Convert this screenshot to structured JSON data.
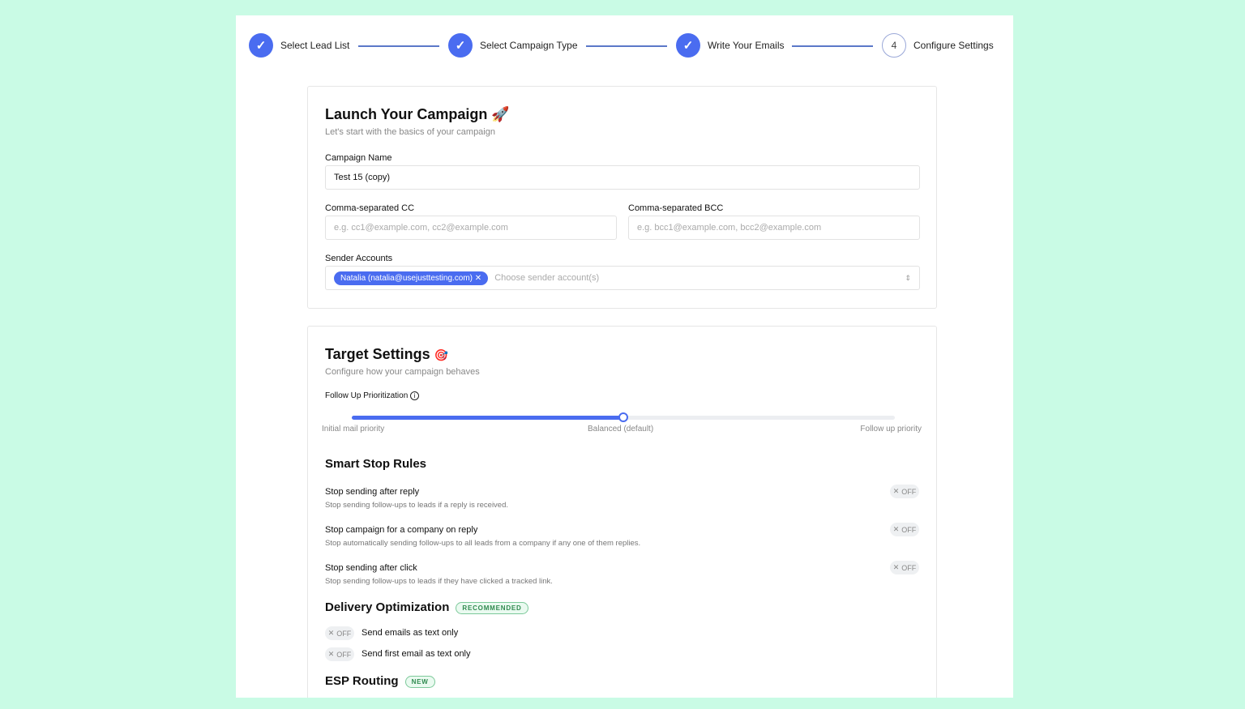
{
  "steps": [
    {
      "label": "Select Lead List",
      "status": "done"
    },
    {
      "label": "Select Campaign Type",
      "status": "done"
    },
    {
      "label": "Write Your Emails",
      "status": "done"
    },
    {
      "label": "Configure Settings",
      "status": "current",
      "number": "4"
    }
  ],
  "launch": {
    "title": "Launch Your Campaign",
    "emoji": "🚀",
    "subtitle": "Let's start with the basics of your campaign",
    "name_label": "Campaign Name",
    "name_value": "Test 15 (copy)",
    "cc_label": "Comma-separated CC",
    "cc_placeholder": "e.g. cc1@example.com, cc2@example.com",
    "bcc_label": "Comma-separated BCC",
    "bcc_placeholder": "e.g. bcc1@example.com, bcc2@example.com",
    "sender_label": "Sender Accounts",
    "sender_chip": "Natalia (natalia@usejusttesting.com)",
    "sender_placeholder": "Choose sender account(s)"
  },
  "target": {
    "title": "Target Settings",
    "emoji": "🎯",
    "subtitle": "Configure how your campaign behaves",
    "slider_label": "Follow Up Prioritization",
    "slider_value_fraction": 0.5,
    "slider_labels": [
      "Initial mail priority",
      "Balanced (default)",
      "Follow up priority"
    ]
  },
  "smart_stop": {
    "title": "Smart Stop Rules",
    "rules": [
      {
        "title": "Stop sending after reply",
        "desc": "Stop sending follow-ups to leads if a reply is received.",
        "state": "OFF"
      },
      {
        "title": "Stop campaign for a company on reply",
        "desc": "Stop automatically sending follow-ups to all leads from a company if any one of them replies.",
        "state": "OFF"
      },
      {
        "title": "Stop sending after click",
        "desc": "Stop sending follow-ups to leads if they have clicked a tracked link.",
        "state": "OFF"
      }
    ]
  },
  "delivery": {
    "title": "Delivery Optimization",
    "badge": "RECOMMENDED",
    "options": [
      {
        "label": "Send emails as text only",
        "state": "OFF"
      },
      {
        "label": "Send first email as text only",
        "state": "OFF"
      }
    ]
  },
  "esp": {
    "title": "ESP Routing",
    "badge": "NEW"
  },
  "colors": {
    "accent": "#4a6cf0",
    "background": "#c9fbe5"
  }
}
